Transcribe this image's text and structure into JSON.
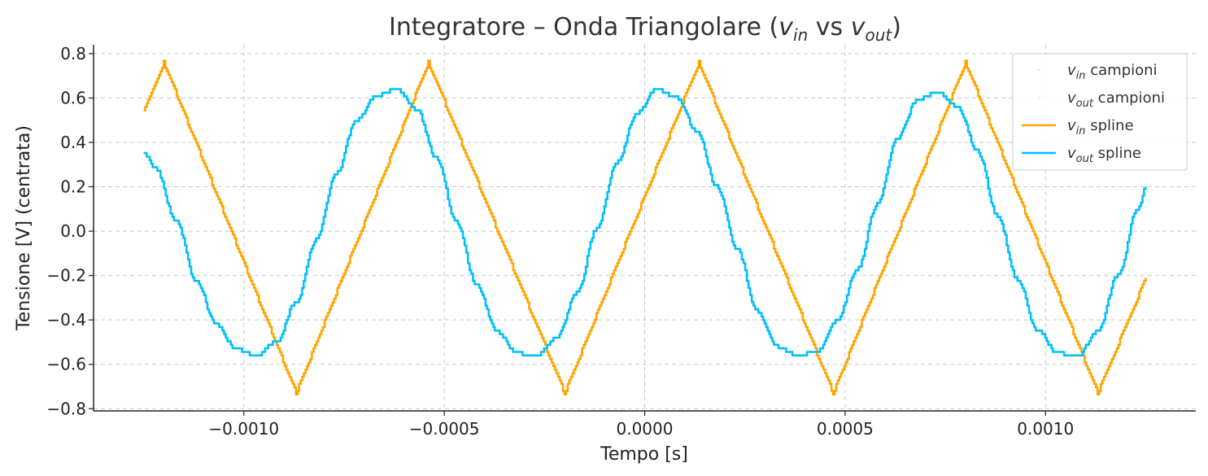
{
  "chart_data": {
    "type": "line",
    "title": {
      "prefix": "Integratore – Onda Triangolare (",
      "v1": "v",
      "v1_sub": "in",
      "mid": " vs ",
      "v2": "v",
      "v2_sub": "out",
      "suffix": ")"
    },
    "xlabel": "Tempo [s]",
    "ylabel": "Tensione [V] (centrata)",
    "xlim": [
      -0.001375,
      0.001375
    ],
    "ylim": [
      -0.81,
      0.84
    ],
    "x_ticks": [
      -0.001,
      -0.0005,
      0.0,
      0.0005,
      0.001
    ],
    "x_tick_labels": [
      "−0.0010",
      "−0.0005",
      "0.0000",
      "0.0005",
      "0.0010"
    ],
    "y_ticks": [
      -0.8,
      -0.6,
      -0.4,
      -0.2,
      0.0,
      0.2,
      0.4,
      0.6,
      0.8
    ],
    "y_tick_labels": [
      "−0.8",
      "−0.6",
      "−0.4",
      "−0.2",
      "0.0",
      "0.2",
      "0.4",
      "0.6",
      "0.8"
    ],
    "grid": true,
    "legend_position": "top-right",
    "legend": [
      {
        "v": "v",
        "sub": "in",
        "text": " campioni",
        "style": "marker"
      },
      {
        "v": "v",
        "sub": "out",
        "text": " campioni",
        "style": "marker"
      },
      {
        "v": "v",
        "sub": "in",
        "text": " spline",
        "style": "line",
        "color": "#FFA500"
      },
      {
        "v": "v",
        "sub": "out",
        "text": " spline",
        "style": "line",
        "color": "#00BFFF"
      }
    ],
    "series": [
      {
        "legend_index": 2,
        "color": "#FFA500",
        "x": [
          -0.00125,
          -0.0012,
          -0.00087,
          -0.00054,
          -0.0002,
          0.000135,
          0.00047,
          0.0008,
          0.00113,
          0.00125
        ],
        "y": [
          0.54,
          0.76,
          -0.73,
          0.76,
          -0.73,
          0.76,
          -0.73,
          0.76,
          -0.73,
          -0.21
        ]
      },
      {
        "legend_index": 3,
        "color": "#00BFFF",
        "x": [
          -0.00125,
          -0.00122,
          -0.00117,
          -0.00112,
          -0.00107,
          -0.00102,
          -0.00097,
          -0.00092,
          -0.00087,
          -0.00082,
          -0.00077,
          -0.00072,
          -0.00067,
          -0.00062,
          -0.00057,
          -0.00052,
          -0.00047,
          -0.00042,
          -0.00037,
          -0.00032,
          -0.00027,
          -0.00022,
          -0.00017,
          -0.00012,
          -7e-05,
          -2e-05,
          3e-05,
          8e-05,
          0.00013,
          0.00018,
          0.00023,
          0.00028,
          0.00033,
          0.00038,
          0.00043,
          0.00048,
          0.00053,
          0.00058,
          0.00063,
          0.00068,
          0.00073,
          0.00078,
          0.00083,
          0.00088,
          0.00093,
          0.00098,
          0.00103,
          0.00108,
          0.00113,
          0.00118,
          0.00123,
          0.00125
        ],
        "y": [
          0.35,
          0.28,
          0.05,
          -0.22,
          -0.42,
          -0.53,
          -0.56,
          -0.5,
          -0.32,
          -0.04,
          0.26,
          0.5,
          0.61,
          0.64,
          0.55,
          0.33,
          0.04,
          -0.24,
          -0.45,
          -0.55,
          -0.56,
          -0.48,
          -0.28,
          0.01,
          0.31,
          0.53,
          0.64,
          0.6,
          0.45,
          0.2,
          -0.08,
          -0.36,
          -0.52,
          -0.56,
          -0.54,
          -0.4,
          -0.17,
          0.12,
          0.42,
          0.59,
          0.63,
          0.56,
          0.36,
          0.07,
          -0.22,
          -0.45,
          -0.55,
          -0.56,
          -0.45,
          -0.2,
          0.1,
          0.2
        ]
      }
    ]
  }
}
